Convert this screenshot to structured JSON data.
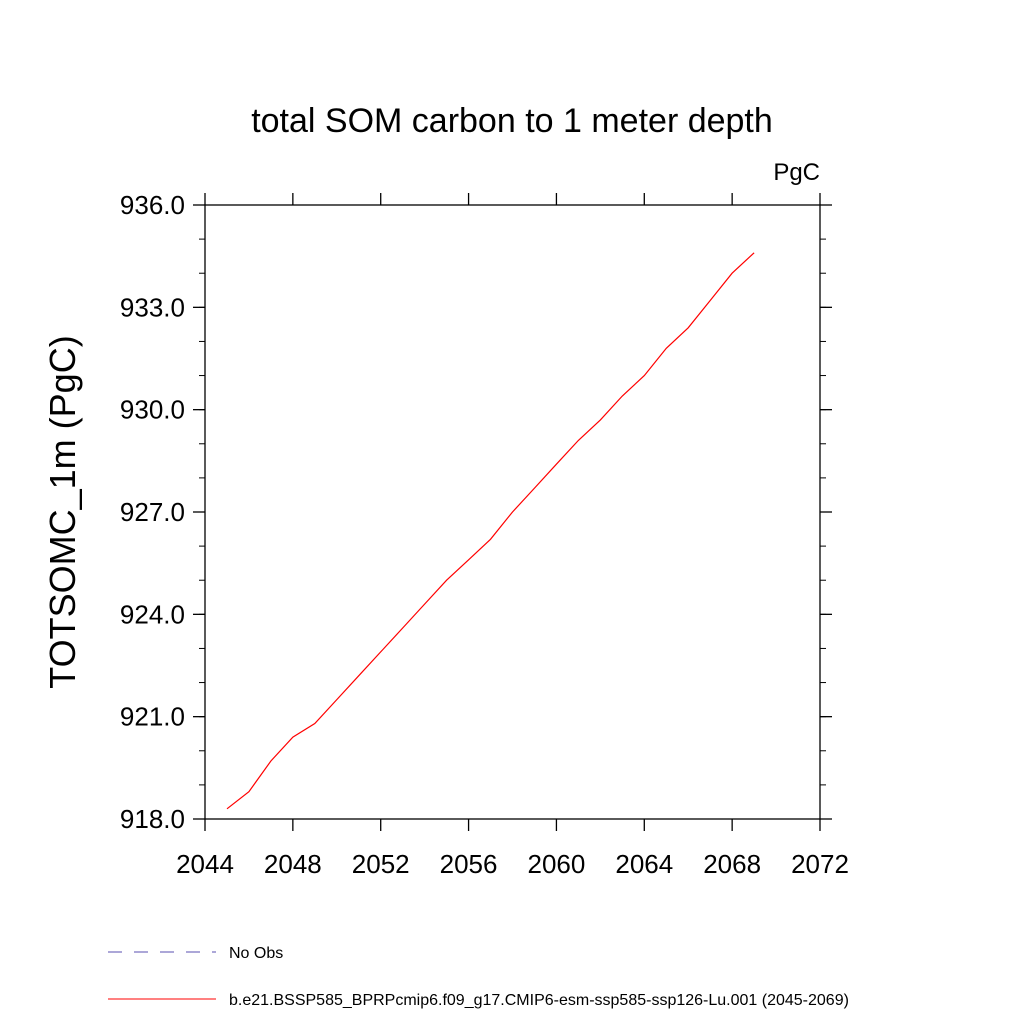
{
  "chart_data": {
    "type": "line",
    "title": "total SOM carbon to 1 meter depth",
    "units_label": "PgC",
    "ylabel": "TOTSOMC_1m  (PgC)",
    "xlabel": "",
    "xlim": [
      2044,
      2072
    ],
    "ylim": [
      918.0,
      936.0
    ],
    "x_ticks": [
      "2044",
      "2048",
      "2052",
      "2056",
      "2060",
      "2064",
      "2068",
      "2072"
    ],
    "y_ticks": [
      "918.0",
      "921.0",
      "924.0",
      "927.0",
      "930.0",
      "933.0",
      "936.0"
    ],
    "grid": false,
    "legend_position": "bottom",
    "series": [
      {
        "name": "No Obs",
        "color": "#5a4fb0",
        "dashed": true,
        "x": [],
        "y": []
      },
      {
        "name": "b.e21.BSSP585_BPRPcmip6.f09_g17.CMIP6-esm-ssp585-ssp126-Lu.001 (2045-2069)",
        "color": "#ff0000",
        "dashed": false,
        "x": [
          2045,
          2046,
          2047,
          2048,
          2049,
          2050,
          2051,
          2052,
          2053,
          2054,
          2055,
          2056,
          2057,
          2058,
          2059,
          2060,
          2061,
          2062,
          2063,
          2064,
          2065,
          2066,
          2067,
          2068,
          2069
        ],
        "y": [
          918.3,
          918.8,
          919.7,
          920.4,
          920.8,
          921.5,
          922.2,
          922.9,
          923.6,
          924.3,
          925.0,
          925.6,
          926.2,
          927.0,
          927.7,
          928.4,
          929.1,
          929.7,
          930.4,
          931.0,
          931.8,
          932.4,
          933.2,
          934.0,
          934.6
        ]
      }
    ]
  }
}
